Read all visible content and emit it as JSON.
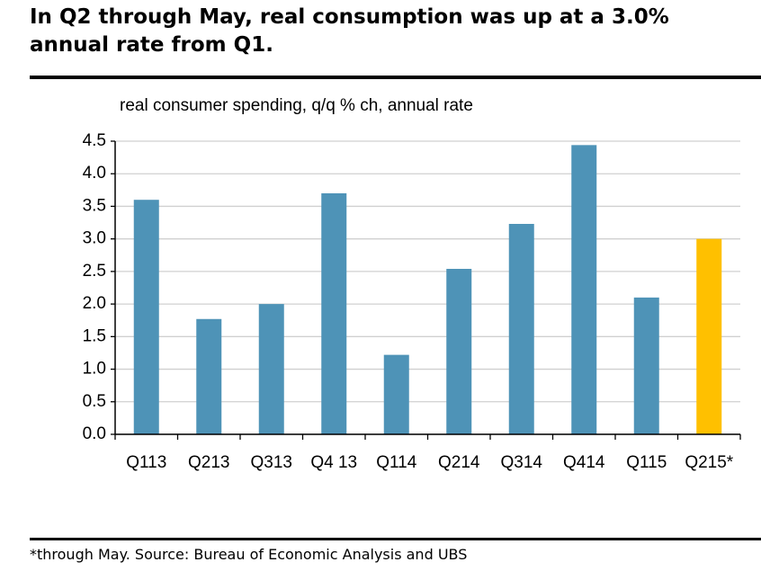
{
  "chart_data": {
    "type": "bar",
    "title": "In Q2 through May, real consumption was up at a 3.0% annual rate from Q1.",
    "y_label": "real consumer spending, q/q % ch, annual rate",
    "footnote": "*through May. Source: Bureau of Economic Analysis and UBS",
    "categories": [
      "Q113",
      "Q213",
      "Q313",
      "Q4 13",
      "Q114",
      "Q214",
      "Q314",
      "Q414",
      "Q115",
      "Q215*"
    ],
    "values": [
      3.6,
      1.77,
      2.0,
      3.7,
      1.22,
      2.54,
      3.23,
      4.44,
      2.1,
      3.0
    ],
    "colors": [
      "#4e93b7",
      "#4e93b7",
      "#4e93b7",
      "#4e93b7",
      "#4e93b7",
      "#4e93b7",
      "#4e93b7",
      "#4e93b7",
      "#4e93b7",
      "#ffc000"
    ],
    "ylim": [
      0,
      4.5
    ],
    "yticks": [
      {
        "value": 0,
        "label": "0.0"
      },
      0.5,
      {
        "value": 1,
        "label": "1.0"
      },
      1.5,
      {
        "value": 2,
        "label": "2.0"
      },
      2.5,
      {
        "value": 3,
        "label": "3.0"
      },
      3.5,
      {
        "value": 4,
        "label": "4.0"
      },
      4.5
    ],
    "grid": true
  }
}
